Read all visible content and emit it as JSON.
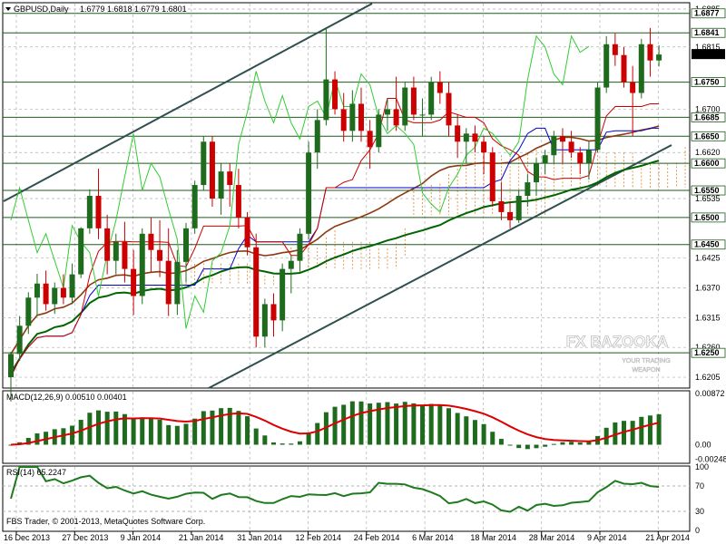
{
  "header": {
    "symbol": "GBPUSD,Daily",
    "ohlc": "1.6779 1.6818 1.6779 1.6801"
  },
  "watermark": {
    "brand": "FX BAZOOKA",
    "tagline_1": "YOUR TRADING",
    "tagline_2": "WEAPON"
  },
  "footer_credit": "FBS Trader, © 2001-2013, MetaQuotes Software Corp.",
  "colors": {
    "bull": "#1e6b1e",
    "bear": "#cc0000",
    "ma_slow": "#006400",
    "ma_mid": "#8b3a0f",
    "kijun": "#0000cc",
    "tenkan": "#cc0000",
    "chikou": "#33cc33",
    "kumo_up": "#e08020",
    "kumo_dn": "#9933cc",
    "trend": "#2f4f4f",
    "level": "#1e5a1e",
    "macd_hist": "#1e6b1e",
    "macd_signal": "#dd0000",
    "rsi": "#1e7a1e"
  },
  "chart_data": [
    {
      "type": "candlestick",
      "title": "GBPUSD,Daily",
      "ylim": [
        1.6185,
        1.6895
      ],
      "x_ticks": [
        "16 Dec 2013",
        "27 Dec 2013",
        "9 Jan 2014",
        "21 Jan 2014",
        "31 Jan 2014",
        "12 Feb 2014",
        "24 Feb 2014",
        "6 Mar 2014",
        "18 Mar 2014",
        "28 Mar 2014",
        "9 Apr 2014",
        "21 Apr 2014"
      ],
      "y_ticks": [
        "1.6885",
        "1.6815",
        "1.6700",
        "1.6620",
        "1.6535",
        "1.6425",
        "1.6370",
        "1.6315",
        "1.6260",
        "1.6205"
      ],
      "levels": [
        "1.6877",
        "1.6841",
        "1.6750",
        "1.6685",
        "1.6650",
        "1.6600",
        "1.6550",
        "1.6500",
        "1.6450",
        "1.6250"
      ],
      "current_price": "1.6801",
      "candles": [
        [
          1.6205,
          1.6252,
          1.616,
          1.6248
        ],
        [
          1.6248,
          1.6318,
          1.6235,
          1.63
        ],
        [
          1.63,
          1.6362,
          1.6285,
          1.6352
        ],
        [
          1.6352,
          1.6396,
          1.6318,
          1.6378
        ],
        [
          1.6378,
          1.6402,
          1.6328,
          1.634
        ],
        [
          1.634,
          1.638,
          1.6322,
          1.637
        ],
        [
          1.637,
          1.6395,
          1.634,
          1.6352
        ],
        [
          1.6352,
          1.6415,
          1.634,
          1.6395
        ],
        [
          1.6395,
          1.6482,
          1.6388,
          1.648
        ],
        [
          1.648,
          1.6552,
          1.647,
          1.654
        ],
        [
          1.654,
          1.659,
          1.646,
          1.648
        ],
        [
          1.648,
          1.6505,
          1.6395,
          1.642
        ],
        [
          1.642,
          1.647,
          1.6395,
          1.6455
        ],
        [
          1.6455,
          1.6492,
          1.638,
          1.6405
        ],
        [
          1.6405,
          1.644,
          1.632,
          1.6355
        ],
        [
          1.6355,
          1.648,
          1.634,
          1.647
        ],
        [
          1.647,
          1.65,
          1.64,
          1.644
        ],
        [
          1.644,
          1.6495,
          1.639,
          1.642
        ],
        [
          1.642,
          1.648,
          1.6318,
          1.634
        ],
        [
          1.634,
          1.644,
          1.632,
          1.6418
        ],
        [
          1.6418,
          1.649,
          1.638,
          1.648
        ],
        [
          1.648,
          1.6568,
          1.647,
          1.656
        ],
        [
          1.656,
          1.665,
          1.655,
          1.664
        ],
        [
          1.664,
          1.665,
          1.652,
          1.6535
        ],
        [
          1.6535,
          1.66,
          1.6505,
          1.6585
        ],
        [
          1.6585,
          1.66,
          1.652,
          1.656
        ],
        [
          1.656,
          1.659,
          1.648,
          1.65
        ],
        [
          1.65,
          1.651,
          1.643,
          1.6445
        ],
        [
          1.6445,
          1.647,
          1.626,
          1.628
        ],
        [
          1.628,
          1.635,
          1.626,
          1.634
        ],
        [
          1.634,
          1.636,
          1.628,
          1.631
        ],
        [
          1.631,
          1.6415,
          1.629,
          1.6405
        ],
        [
          1.6405,
          1.643,
          1.636,
          1.642
        ],
        [
          1.642,
          1.648,
          1.64,
          1.647
        ],
        [
          1.647,
          1.664,
          1.646,
          1.662
        ],
        [
          1.662,
          1.67,
          1.659,
          1.668
        ],
        [
          1.668,
          1.685,
          1.667,
          1.6755
        ],
        [
          1.6755,
          1.677,
          1.669,
          1.67
        ],
        [
          1.67,
          1.673,
          1.664,
          1.666
        ],
        [
          1.666,
          1.6735,
          1.664,
          1.671
        ],
        [
          1.671,
          1.674,
          1.664,
          1.666
        ],
        [
          1.666,
          1.668,
          1.659,
          1.663
        ],
        [
          1.663,
          1.67,
          1.662,
          1.669
        ],
        [
          1.669,
          1.672,
          1.666,
          1.67
        ],
        [
          1.67,
          1.676,
          1.666,
          1.667
        ],
        [
          1.667,
          1.675,
          1.666,
          1.674
        ],
        [
          1.674,
          1.676,
          1.668,
          1.669
        ],
        [
          1.669,
          1.672,
          1.665,
          1.669
        ],
        [
          1.669,
          1.676,
          1.668,
          1.675
        ],
        [
          1.675,
          1.677,
          1.671,
          1.673
        ],
        [
          1.673,
          1.675,
          1.665,
          1.667
        ],
        [
          1.667,
          1.669,
          1.661,
          1.664
        ],
        [
          1.664,
          1.6665,
          1.66,
          1.6655
        ],
        [
          1.6655,
          1.667,
          1.662,
          1.664
        ],
        [
          1.664,
          1.665,
          1.658,
          1.662
        ],
        [
          1.662,
          1.663,
          1.652,
          1.653
        ],
        [
          1.653,
          1.6565,
          1.6495,
          1.651
        ],
        [
          1.651,
          1.653,
          1.648,
          1.6495
        ],
        [
          1.6495,
          1.655,
          1.649,
          1.654
        ],
        [
          1.654,
          1.658,
          1.652,
          1.6565
        ],
        [
          1.6565,
          1.661,
          1.654,
          1.66
        ],
        [
          1.66,
          1.6625,
          1.658,
          1.6615
        ],
        [
          1.6615,
          1.666,
          1.66,
          1.665
        ],
        [
          1.665,
          1.6665,
          1.66,
          1.664
        ],
        [
          1.664,
          1.666,
          1.661,
          1.662
        ],
        [
          1.662,
          1.663,
          1.658,
          1.66
        ],
        [
          1.66,
          1.664,
          1.657,
          1.6625
        ],
        [
          1.6625,
          1.675,
          1.662,
          1.674
        ],
        [
          1.674,
          1.6835,
          1.673,
          1.682
        ],
        [
          1.682,
          1.684,
          1.678,
          1.68
        ],
        [
          1.68,
          1.6815,
          1.674,
          1.675
        ],
        [
          1.675,
          1.678,
          1.665,
          1.673
        ],
        [
          1.673,
          1.683,
          1.672,
          1.682
        ],
        [
          1.682,
          1.685,
          1.676,
          1.679
        ],
        [
          1.679,
          1.6818,
          1.6779,
          1.6801
        ]
      ]
    },
    {
      "type": "bar",
      "title": "MACD(12,26,9) 0.00510 0.00401",
      "ylim": [
        -0.003,
        0.009
      ],
      "y_ticks": [
        "0.00872",
        "0.00",
        "-0.00248"
      ]
    },
    {
      "type": "line",
      "title": "RSI(14) 65.2247",
      "ylim": [
        0,
        100
      ],
      "y_ticks": [
        "100",
        "70",
        "30",
        "0"
      ]
    }
  ]
}
